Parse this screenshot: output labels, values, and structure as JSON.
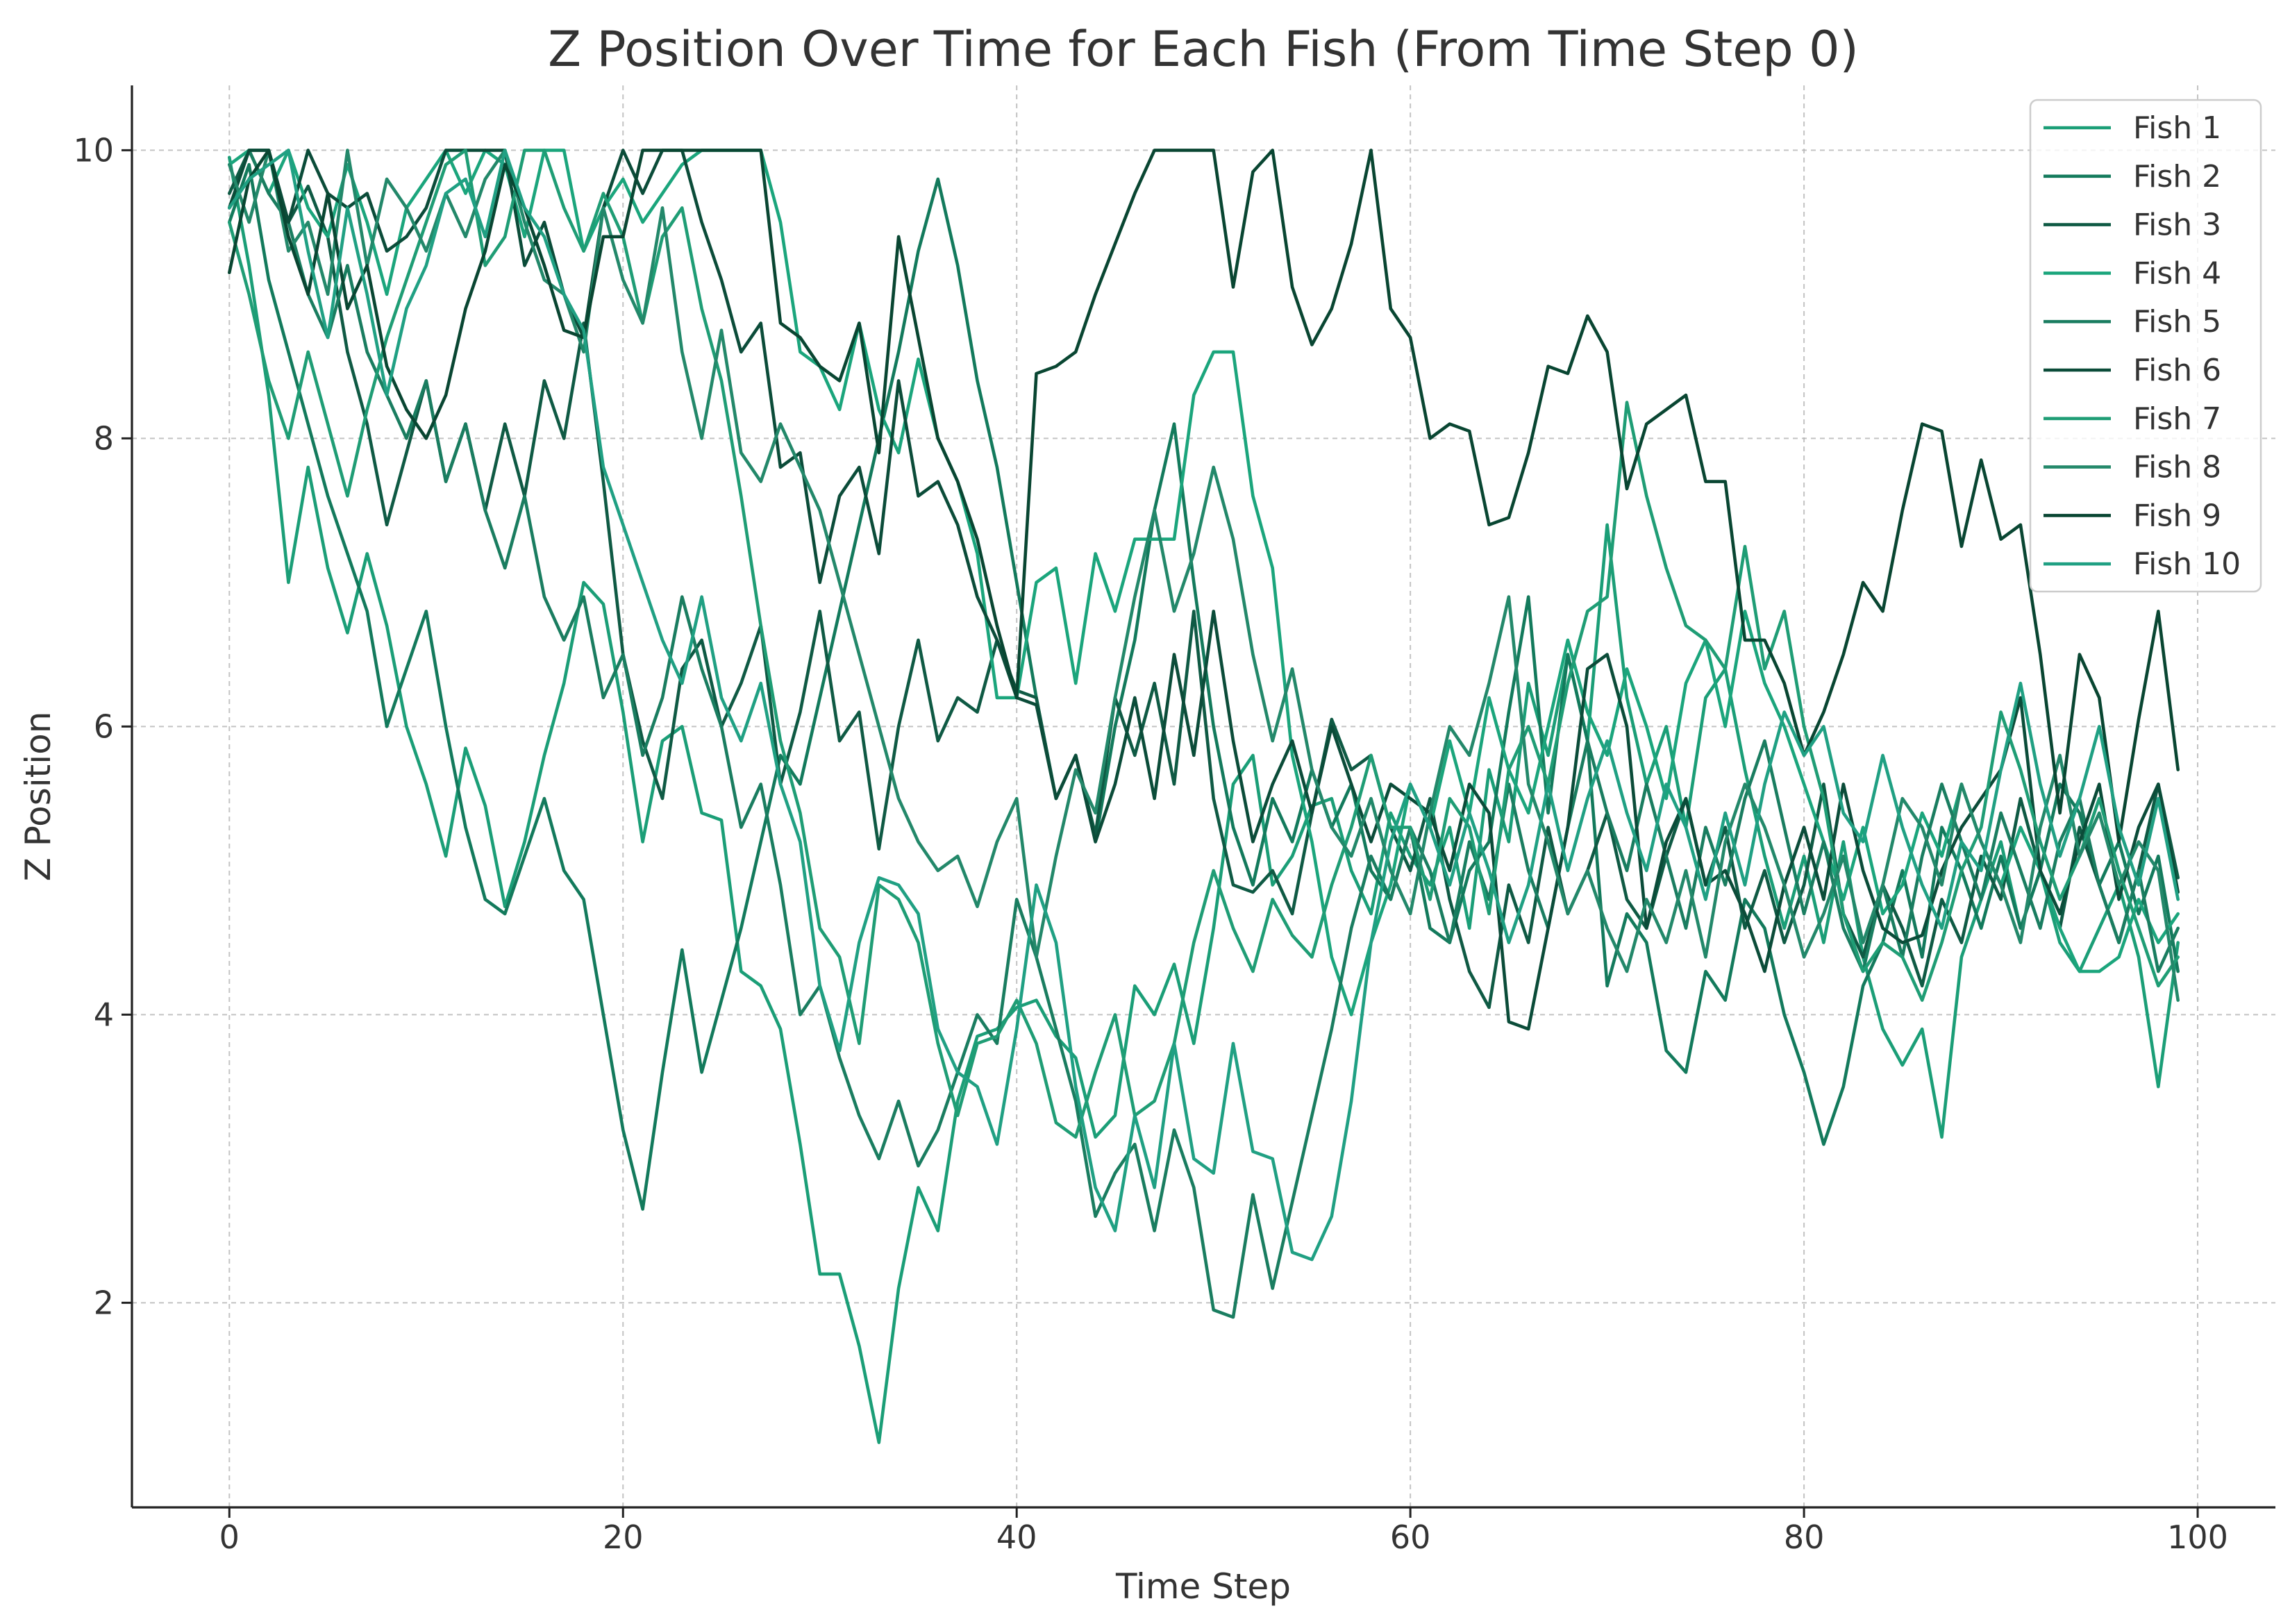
{
  "chart_data": {
    "type": "line",
    "title": "Z Position Over Time for Each Fish (From Time Step 0)",
    "xlabel": "Time Step",
    "ylabel": "Z Position",
    "xlim": [
      -4.95,
      103.95
    ],
    "ylim": [
      0.58,
      10.45
    ],
    "x_ticks": [
      0,
      20,
      40,
      60,
      80,
      100
    ],
    "y_ticks": [
      2,
      4,
      6,
      8,
      10
    ],
    "grid": true,
    "legend": "top-right",
    "x": [
      0,
      1,
      2,
      3,
      4,
      5,
      6,
      7,
      8,
      9,
      10,
      11,
      12,
      13,
      14,
      15,
      16,
      17,
      18,
      19,
      20,
      21,
      22,
      23,
      24,
      25,
      26,
      27,
      28,
      29,
      30,
      31,
      32,
      33,
      34,
      35,
      36,
      37,
      38,
      39,
      40,
      41,
      42,
      43,
      44,
      45,
      46,
      47,
      48,
      49,
      50,
      51,
      52,
      53,
      54,
      55,
      56,
      57,
      58,
      59,
      60,
      61,
      62,
      63,
      64,
      65,
      66,
      67,
      68,
      69,
      70,
      71,
      72,
      73,
      74,
      75,
      76,
      77,
      78,
      79,
      80,
      81,
      82,
      83,
      84,
      85,
      86,
      87,
      88,
      89,
      90,
      91,
      92,
      93,
      94,
      95,
      96,
      97,
      98,
      99
    ],
    "series": [
      {
        "name": "Fish 1",
        "color": "#1b9e77",
        "values": [
          9.95,
          9.2,
          8.3,
          7.0,
          7.8,
          7.1,
          6.65,
          7.2,
          6.7,
          6.0,
          5.6,
          5.1,
          5.85,
          5.45,
          4.75,
          5.2,
          5.8,
          6.3,
          7.0,
          6.85,
          6.1,
          5.2,
          5.9,
          6.0,
          5.4,
          5.35,
          4.3,
          4.2,
          3.9,
          3.1,
          2.2,
          2.2,
          1.7,
          1.03,
          2.1,
          2.8,
          2.5,
          3.4,
          3.85,
          3.9,
          4.05,
          4.1,
          3.85,
          3.7,
          3.15,
          3.3,
          4.2,
          4.0,
          4.35,
          3.8,
          4.6,
          5.6,
          5.8,
          4.9,
          5.1,
          5.45,
          5.5,
          5.0,
          4.7,
          5.4,
          5.1,
          4.9,
          5.3,
          4.6,
          5.7,
          5.2,
          6.3,
          5.8,
          6.5,
          5.9,
          7.4,
          6.2,
          5.6,
          6.0,
          5.3,
          6.2,
          6.4,
          5.7,
          5.1,
          4.6,
          5.1,
          4.5,
          5.2,
          4.4,
          3.9,
          3.65,
          3.9,
          3.15,
          4.4,
          4.8,
          5.2,
          4.6,
          5.0,
          4.5,
          4.3,
          4.6,
          4.9,
          4.4,
          3.5,
          4.5
        ]
      },
      {
        "name": "Fish 2",
        "color": "#137a5c",
        "values": [
          9.5,
          9.9,
          9.1,
          8.6,
          8.1,
          7.6,
          7.2,
          6.8,
          6.0,
          6.4,
          6.8,
          6.0,
          5.3,
          4.8,
          4.7,
          5.1,
          5.5,
          5.0,
          4.8,
          4.0,
          3.2,
          2.65,
          3.6,
          4.45,
          3.6,
          4.1,
          4.6,
          5.2,
          5.8,
          5.6,
          6.2,
          6.8,
          7.4,
          8.0,
          8.6,
          9.3,
          9.8,
          9.2,
          8.4,
          7.8,
          7.0,
          6.2,
          5.5,
          5.8,
          5.2,
          6.0,
          6.6,
          7.5,
          8.1,
          7.0,
          6.0,
          5.3,
          4.9,
          5.5,
          5.2,
          5.7,
          5.3,
          5.6,
          5.0,
          4.8,
          5.3,
          4.6,
          4.5,
          5.0,
          5.2,
          6.1,
          6.9,
          5.4,
          6.5,
          5.9,
          4.2,
          4.7,
          4.5,
          3.75,
          3.6,
          4.3,
          4.1,
          4.8,
          4.6,
          4.0,
          3.6,
          3.1,
          3.5,
          4.2,
          4.5,
          5.0,
          4.4,
          5.3,
          5.0,
          4.6,
          5.1,
          4.6,
          5.0,
          5.6,
          5.4,
          4.9,
          5.2,
          4.7,
          5.1,
          4.3
        ]
      },
      {
        "name": "Fish 3",
        "color": "#0f5a44",
        "values": [
          9.7,
          10.0,
          10.0,
          9.5,
          9.75,
          9.4,
          8.6,
          8.1,
          7.4,
          7.9,
          8.4,
          7.7,
          8.1,
          7.5,
          8.1,
          7.6,
          8.4,
          8.0,
          8.8,
          7.7,
          6.5,
          5.9,
          5.5,
          6.4,
          6.6,
          6.0,
          6.3,
          6.7,
          5.6,
          6.1,
          6.8,
          5.9,
          6.1,
          5.15,
          6.0,
          6.6,
          5.9,
          6.2,
          6.1,
          6.6,
          6.25,
          6.2,
          5.5,
          5.8,
          5.25,
          6.2,
          5.8,
          6.3,
          5.6,
          6.8,
          5.5,
          4.9,
          4.85,
          5.0,
          4.7,
          5.4,
          6.05,
          5.7,
          5.8,
          5.3,
          5.0,
          5.5,
          4.8,
          4.3,
          4.05,
          4.9,
          4.5,
          5.3,
          4.7,
          5.0,
          5.4,
          4.8,
          4.6,
          5.1,
          5.5,
          4.9,
          5.3,
          4.6,
          5.0,
          4.5,
          4.9,
          5.6,
          4.7,
          4.4,
          4.9,
          4.6,
          4.2,
          4.8,
          4.5,
          5.1,
          4.8,
          5.5,
          5.0,
          4.6,
          5.3,
          4.9,
          4.5,
          5.0,
          5.6,
          4.95
        ]
      },
      {
        "name": "Fish 4",
        "color": "#1ba57c",
        "values": [
          9.9,
          10.0,
          9.7,
          10.0,
          9.6,
          9.4,
          9.9,
          9.5,
          9.0,
          9.6,
          9.8,
          10.0,
          9.7,
          10.0,
          9.9,
          9.4,
          10.0,
          10.0,
          9.3,
          9.6,
          9.8,
          9.5,
          9.7,
          9.9,
          10.0,
          10.0,
          10.0,
          10.0,
          9.5,
          8.6,
          8.5,
          8.2,
          8.8,
          8.2,
          7.9,
          8.55,
          8.0,
          7.7,
          7.2,
          6.2,
          6.2,
          7.0,
          7.1,
          6.3,
          7.2,
          6.8,
          7.3,
          7.3,
          7.3,
          8.3,
          8.6,
          8.6,
          7.6,
          7.1,
          5.8,
          5.2,
          4.4,
          4.0,
          4.5,
          4.9,
          5.6,
          5.3,
          5.9,
          5.4,
          6.2,
          5.7,
          5.4,
          6.0,
          6.6,
          6.1,
          5.8,
          6.4,
          6.0,
          5.5,
          6.3,
          6.6,
          6.0,
          6.8,
          6.3,
          6.0,
          5.6,
          5.2,
          4.8,
          5.3,
          4.7,
          4.9,
          5.4,
          5.1,
          5.6,
          5.2,
          4.9,
          5.3,
          5.0,
          4.6,
          4.3,
          4.3,
          4.4,
          4.8,
          4.5,
          4.7
        ]
      },
      {
        "name": "Fish 5",
        "color": "#1a7d60",
        "values": [
          9.6,
          10.0,
          9.7,
          9.5,
          9.0,
          8.7,
          9.2,
          8.6,
          8.3,
          8.0,
          8.4,
          7.7,
          8.1,
          7.5,
          7.1,
          7.6,
          6.9,
          6.6,
          6.9,
          6.2,
          6.5,
          5.8,
          6.2,
          6.9,
          6.4,
          6.0,
          5.3,
          5.6,
          4.9,
          4.0,
          4.2,
          3.7,
          3.3,
          3.0,
          3.4,
          2.95,
          3.2,
          3.6,
          4.0,
          3.8,
          4.8,
          4.4,
          3.9,
          3.4,
          2.6,
          2.9,
          3.1,
          2.5,
          3.2,
          2.8,
          1.95,
          1.9,
          2.75,
          2.1,
          2.7,
          3.3,
          3.9,
          4.6,
          5.1,
          4.8,
          5.3,
          5.0,
          4.5,
          5.2,
          4.8,
          5.6,
          5.0,
          4.6,
          5.3,
          5.9,
          5.4,
          5.0,
          5.6,
          5.1,
          4.6,
          5.3,
          4.9,
          5.5,
          5.9,
          5.3,
          4.7,
          5.2,
          4.6,
          4.3,
          4.9,
          4.4,
          5.1,
          5.6,
          5.2,
          4.8,
          5.4,
          5.0,
          4.6,
          5.2,
          5.5,
          4.9,
          4.5,
          5.0,
          4.3,
          4.6
        ]
      },
      {
        "name": "Fish 6",
        "color": "#0b4c39",
        "values": [
          9.6,
          10.0,
          10.0,
          9.5,
          10.0,
          9.7,
          9.6,
          9.7,
          9.3,
          9.4,
          9.6,
          10.0,
          10.0,
          10.0,
          10.0,
          9.2,
          9.5,
          9.0,
          8.7,
          9.6,
          10.0,
          9.7,
          10.0,
          10.0,
          9.5,
          9.1,
          8.6,
          8.8,
          7.8,
          7.9,
          7.0,
          7.6,
          7.8,
          7.2,
          8.4,
          7.6,
          7.7,
          7.4,
          6.9,
          6.6,
          6.2,
          6.15,
          5.5,
          5.8,
          5.2,
          5.6,
          6.2,
          5.5,
          6.5,
          5.8,
          6.8,
          5.9,
          5.2,
          5.6,
          5.9,
          5.4,
          6.0,
          5.6,
          5.2,
          5.6,
          5.5,
          5.4,
          5.0,
          5.6,
          5.4,
          3.95,
          3.9,
          4.6,
          5.3,
          6.4,
          6.5,
          6.0,
          4.6,
          5.2,
          5.5,
          4.9,
          5.0,
          4.7,
          4.3,
          4.9,
          5.3,
          4.8,
          5.6,
          5.0,
          4.6,
          4.5,
          4.55,
          5.0,
          5.3,
          5.5,
          5.7,
          6.2,
          5.0,
          4.7,
          5.2,
          5.6,
          4.8,
          5.3,
          5.6,
          4.85
        ]
      },
      {
        "name": "Fish 7",
        "color": "#1f9d75",
        "values": [
          9.5,
          9.0,
          8.4,
          8.0,
          8.6,
          8.1,
          7.6,
          8.2,
          8.7,
          9.1,
          9.5,
          9.9,
          10.0,
          9.2,
          9.4,
          10.0,
          10.0,
          9.6,
          9.3,
          9.7,
          9.4,
          8.8,
          9.4,
          9.6,
          8.9,
          8.4,
          7.6,
          6.7,
          5.9,
          5.4,
          4.6,
          4.4,
          3.8,
          4.9,
          4.8,
          4.5,
          3.8,
          3.3,
          3.8,
          3.85,
          4.1,
          3.8,
          3.25,
          3.15,
          3.6,
          4.0,
          3.3,
          3.4,
          3.8,
          4.5,
          5.0,
          4.6,
          4.3,
          4.8,
          4.55,
          4.4,
          4.9,
          5.3,
          5.8,
          5.3,
          5.3,
          4.8,
          5.5,
          5.3,
          4.7,
          5.7,
          6.0,
          5.6,
          6.3,
          6.8,
          6.9,
          8.25,
          7.6,
          7.1,
          6.7,
          6.6,
          6.4,
          7.25,
          6.4,
          6.8,
          6.0,
          5.5,
          4.7,
          4.3,
          4.5,
          4.4,
          4.1,
          4.5,
          5.0,
          5.3,
          6.1,
          5.7,
          5.2,
          4.8,
          5.1,
          5.5,
          5.0,
          4.6,
          4.2,
          4.4
        ]
      },
      {
        "name": "Fish 8",
        "color": "#23886a",
        "values": [
          9.9,
          9.5,
          10.0,
          9.3,
          9.5,
          9.0,
          10.0,
          9.2,
          9.8,
          9.6,
          9.3,
          9.7,
          9.4,
          9.8,
          10.0,
          9.5,
          9.1,
          9.0,
          8.6,
          9.6,
          9.1,
          8.8,
          9.6,
          8.6,
          8.0,
          8.75,
          7.9,
          7.7,
          8.1,
          7.8,
          7.5,
          7.0,
          6.5,
          6.0,
          5.5,
          5.2,
          5.0,
          5.1,
          4.75,
          5.2,
          5.5,
          4.4,
          5.1,
          5.7,
          5.4,
          6.2,
          6.9,
          7.5,
          6.8,
          7.2,
          7.8,
          7.3,
          6.5,
          5.9,
          6.4,
          5.7,
          5.3,
          5.1,
          5.5,
          5.0,
          4.7,
          5.4,
          6.0,
          5.8,
          6.3,
          6.9,
          5.6,
          5.2,
          4.7,
          5.0,
          4.6,
          4.3,
          4.8,
          4.5,
          5.0,
          4.4,
          5.2,
          5.6,
          5.3,
          4.9,
          4.4,
          4.7,
          5.1,
          4.5,
          4.9,
          5.5,
          5.3,
          4.9,
          5.6,
          5.2,
          4.9,
          4.5,
          5.3,
          5.8,
          5.1,
          5.4,
          4.9,
          5.2,
          5.0,
          4.1
        ]
      },
      {
        "name": "Fish 9",
        "color": "#094632",
        "values": [
          9.15,
          9.8,
          10.0,
          9.4,
          9.0,
          9.7,
          8.9,
          9.2,
          8.5,
          8.2,
          8.0,
          8.3,
          8.9,
          9.3,
          9.9,
          9.6,
          9.2,
          8.75,
          8.7,
          9.4,
          9.4,
          10.0,
          10.0,
          10.0,
          10.0,
          10.0,
          10.0,
          10.0,
          8.8,
          8.7,
          8.5,
          8.4,
          8.8,
          7.9,
          9.4,
          8.7,
          8.0,
          7.7,
          7.3,
          6.7,
          6.2,
          8.45,
          8.5,
          8.6,
          9.0,
          9.35,
          9.7,
          10.0,
          10.0,
          10.0,
          10.0,
          9.05,
          9.85,
          10.0,
          9.05,
          8.65,
          8.9,
          9.35,
          10.0,
          8.9,
          8.7,
          8.0,
          8.1,
          8.05,
          7.4,
          7.45,
          7.9,
          8.5,
          8.45,
          8.85,
          8.6,
          7.65,
          8.1,
          8.2,
          8.3,
          7.7,
          7.7,
          6.6,
          6.6,
          6.3,
          5.8,
          6.1,
          6.5,
          7.0,
          6.8,
          7.5,
          8.1,
          8.05,
          7.25,
          7.85,
          7.3,
          7.4,
          6.5,
          5.4,
          6.5,
          6.2,
          5.2,
          6.05,
          6.8,
          5.7
        ]
      },
      {
        "name": "Fish 10",
        "color": "#20a083",
        "values": [
          9.6,
          9.8,
          9.9,
          10.0,
          9.3,
          8.7,
          9.6,
          9.0,
          8.3,
          8.9,
          9.2,
          9.7,
          9.8,
          9.4,
          10.0,
          9.6,
          9.4,
          9.0,
          8.75,
          7.8,
          7.4,
          7.0,
          6.6,
          6.3,
          6.9,
          6.2,
          5.9,
          6.3,
          5.6,
          5.2,
          4.2,
          3.75,
          4.5,
          4.95,
          4.9,
          4.7,
          3.9,
          3.6,
          3.5,
          3.1,
          3.9,
          4.9,
          4.5,
          3.5,
          2.8,
          2.5,
          3.3,
          2.8,
          3.8,
          3.0,
          2.9,
          3.8,
          3.05,
          3.0,
          2.35,
          2.3,
          2.6,
          3.4,
          4.5,
          5.2,
          5.6,
          5.3,
          4.9,
          5.4,
          5.0,
          4.5,
          4.9,
          5.6,
          5.0,
          5.5,
          5.9,
          5.4,
          5.0,
          5.6,
          5.3,
          4.8,
          5.4,
          4.9,
          5.6,
          6.1,
          5.8,
          6.0,
          5.4,
          5.2,
          5.8,
          5.3,
          4.9,
          4.6,
          5.2,
          5.0,
          5.7,
          6.3,
          5.6,
          5.1,
          5.5,
          6.0,
          5.3,
          4.9,
          5.5,
          4.8
        ]
      }
    ]
  }
}
